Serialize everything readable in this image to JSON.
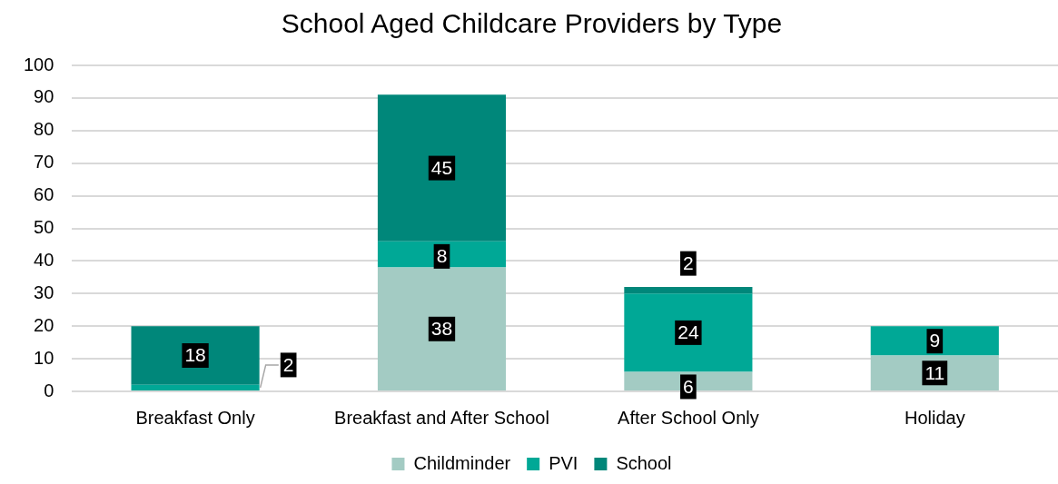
{
  "chart_data": {
    "type": "bar",
    "title": "School Aged Childcare Providers by Type",
    "categories": [
      "Breakfast Only",
      "Breakfast and After School",
      "After School Only",
      "Holiday"
    ],
    "series": [
      {
        "name": "Childminder",
        "color": "#a3cbc3",
        "values": [
          null,
          38,
          6,
          11
        ]
      },
      {
        "name": "PVI",
        "color": "#00a896",
        "values": [
          2,
          8,
          24,
          9
        ]
      },
      {
        "name": "School",
        "color": "#00877a",
        "values": [
          18,
          45,
          2,
          null
        ]
      }
    ],
    "stacked": true,
    "ylim": [
      0,
      100
    ],
    "yticks": [
      0,
      10,
      20,
      30,
      40,
      50,
      60,
      70,
      80,
      90,
      100
    ],
    "grid": "y",
    "legend": "bottom",
    "data_labels": true
  }
}
